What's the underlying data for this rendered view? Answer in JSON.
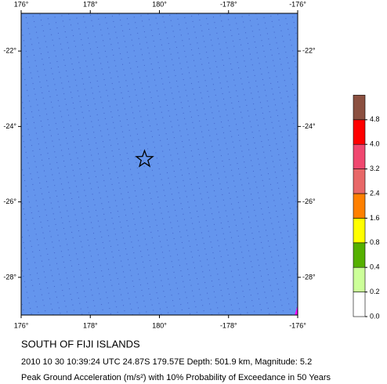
{
  "chart_data": {
    "type": "map",
    "title": "SOUTH OF FIJI ISLANDS",
    "subtitle": "2010 10 30 10:39:24 UTC 24.87S 179.57E Depth: 501.9 km, Magnitude: 5.2",
    "caption": "Peak Ground Acceleration (m/s²) with 10% Probability of Exceedance in 50 Years",
    "xlim": [
      176,
      -176
    ],
    "ylim": [
      -29,
      -21
    ],
    "xticks": [
      {
        "value": 176,
        "label": "176°"
      },
      {
        "value": 178,
        "label": "178°"
      },
      {
        "value": 180,
        "label": "180°"
      },
      {
        "value": -178,
        "label": "-178°"
      },
      {
        "value": -176,
        "label": "-176°"
      }
    ],
    "yticks": [
      {
        "value": -22,
        "label": "-22°"
      },
      {
        "value": -24,
        "label": "-24°"
      },
      {
        "value": -26,
        "label": "-26°"
      },
      {
        "value": -28,
        "label": "-28°"
      }
    ],
    "background_color": "#6495ed",
    "epicenter": {
      "lon": 179.57,
      "lat": -24.87
    },
    "colorbar": {
      "levels": [
        0.0,
        0.2,
        0.4,
        0.8,
        1.6,
        2.4,
        3.2,
        4.0,
        4.8
      ],
      "level_labels": [
        "0.0",
        "0.2",
        "0.4",
        "0.8",
        "1.6",
        "2.4",
        "3.2",
        "4.0",
        "4.8"
      ],
      "colors": [
        "#ffffff",
        "#ccff99",
        "#55b000",
        "#ffff00",
        "#ff8000",
        "#e86868",
        "#f04870",
        "#ff0000",
        "#8b5040"
      ]
    }
  }
}
